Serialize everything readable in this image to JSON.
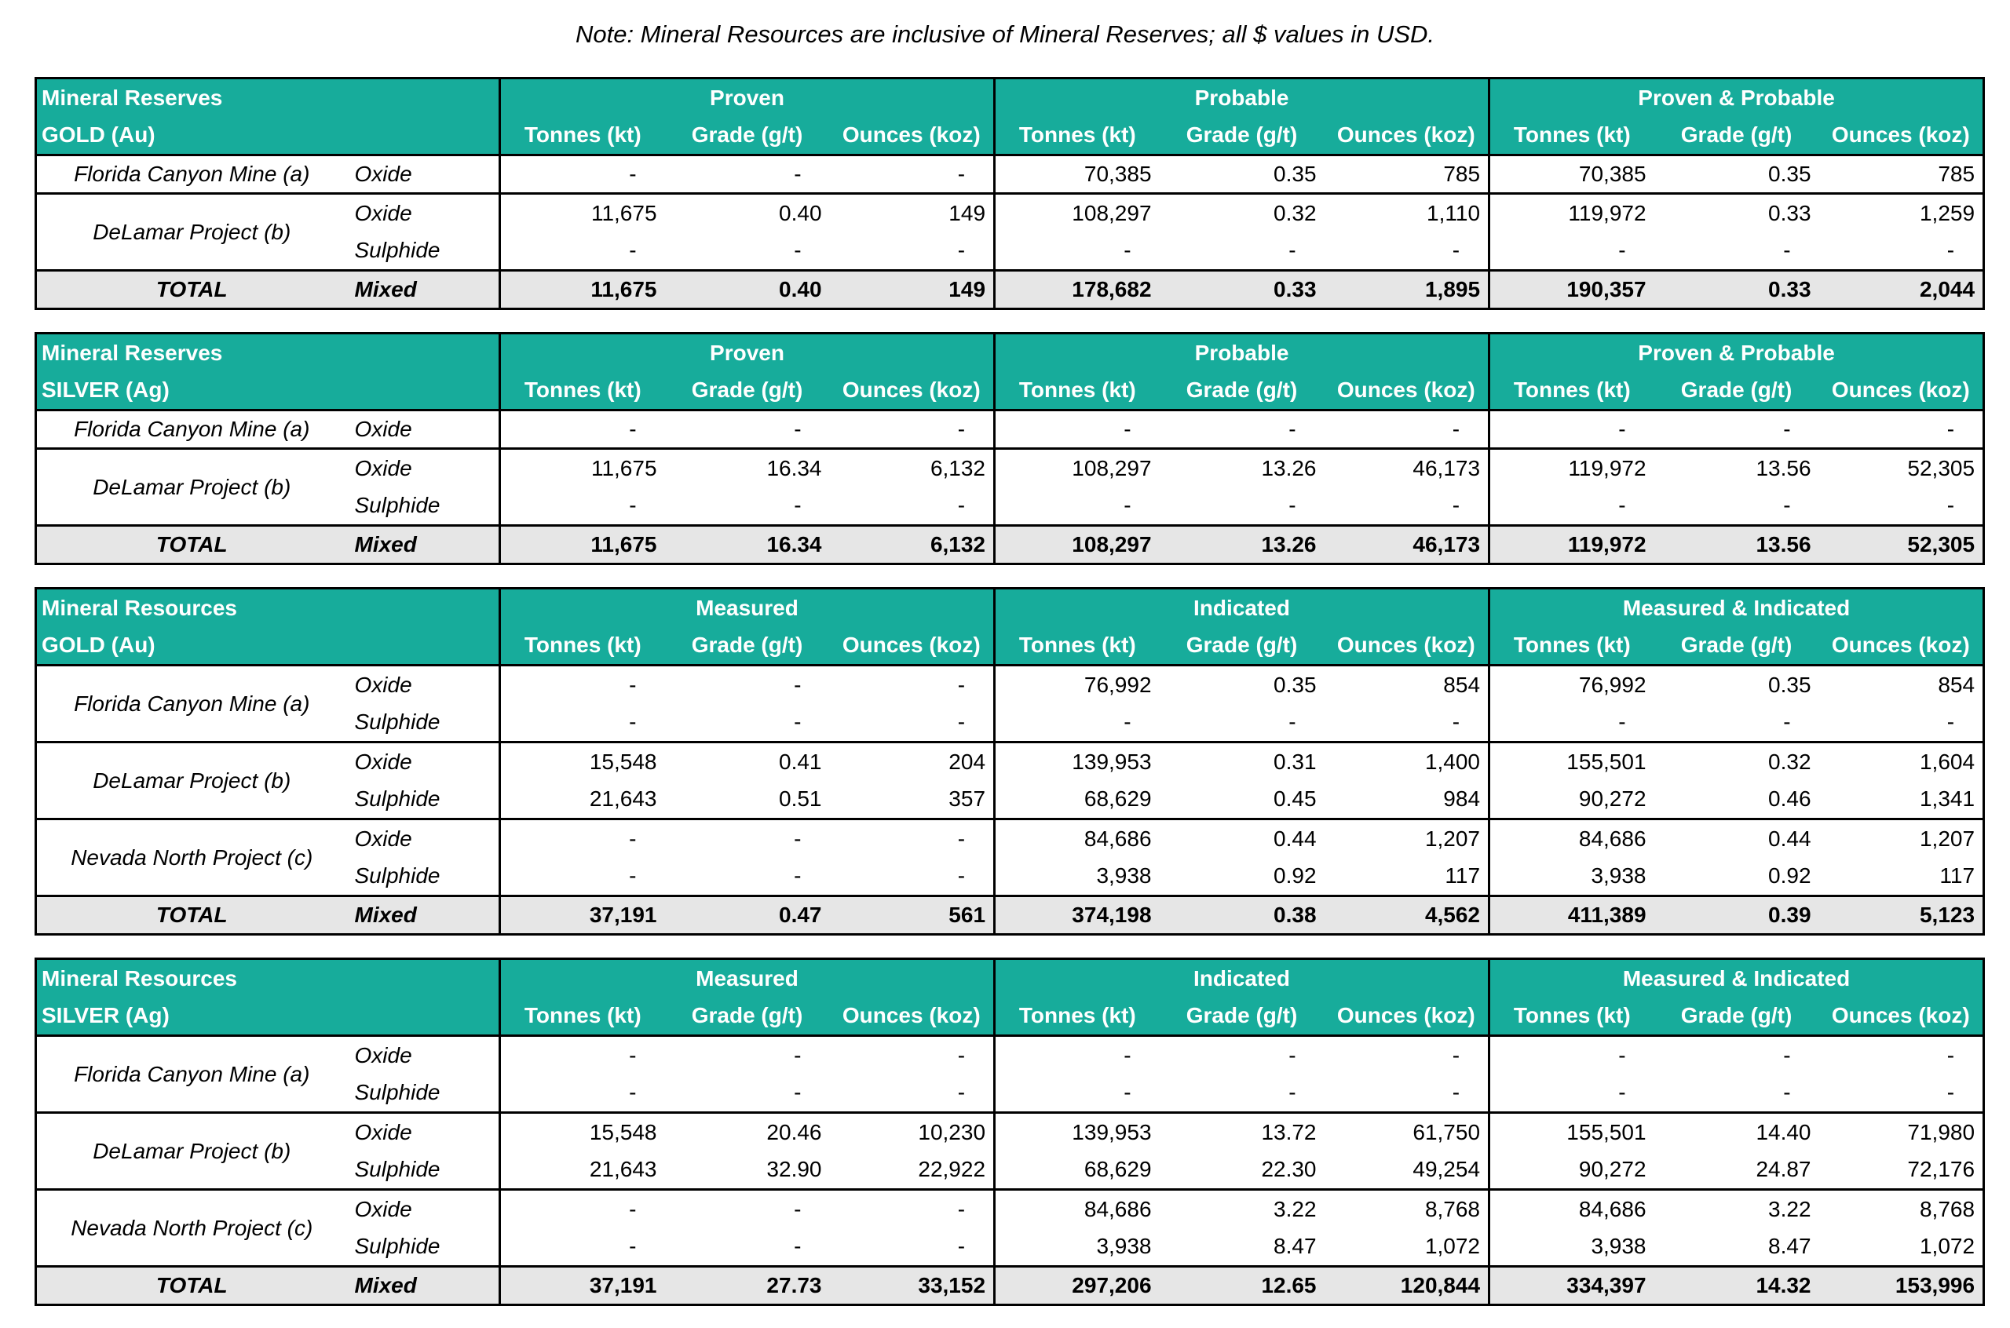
{
  "note": "Note: Mineral Resources are inclusive of Mineral Reserves; all $ values in USD.",
  "tables": [
    {
      "title": "Mineral Reserves",
      "metal": "GOLD (Au)",
      "groups": [
        "Proven",
        "Probable",
        "Proven & Probable"
      ],
      "columns": [
        "Tonnes (kt)",
        "Grade (g/t)",
        "Ounces (koz)",
        "Tonnes (kt)",
        "Grade (g/t)",
        "Ounces (koz)",
        "Tonnes (kt)",
        "Grade (g/t)",
        "Ounces (koz)"
      ],
      "projects": [
        {
          "name": "Florida Canyon Mine (a)",
          "rows": [
            {
              "type": "Oxide",
              "values": [
                "-",
                "-",
                "-",
                "70,385",
                "0.35",
                "785",
                "70,385",
                "0.35",
                "785"
              ]
            }
          ]
        },
        {
          "name": "DeLamar Project (b)",
          "rows": [
            {
              "type": "Oxide",
              "values": [
                "11,675",
                "0.40",
                "149",
                "108,297",
                "0.32",
                "1,110",
                "119,972",
                "0.33",
                "1,259"
              ]
            },
            {
              "type": "Sulphide",
              "values": [
                "-",
                "-",
                "-",
                "-",
                "-",
                "-",
                "-",
                "-",
                "-"
              ]
            }
          ]
        }
      ],
      "total": {
        "label": "TOTAL",
        "type": "Mixed",
        "values": [
          "11,675",
          "0.40",
          "149",
          "178,682",
          "0.33",
          "1,895",
          "190,357",
          "0.33",
          "2,044"
        ]
      }
    },
    {
      "title": "Mineral Reserves",
      "metal": "SILVER (Ag)",
      "groups": [
        "Proven",
        "Probable",
        "Proven & Probable"
      ],
      "columns": [
        "Tonnes (kt)",
        "Grade (g/t)",
        "Ounces (koz)",
        "Tonnes (kt)",
        "Grade (g/t)",
        "Ounces (koz)",
        "Tonnes (kt)",
        "Grade (g/t)",
        "Ounces (koz)"
      ],
      "projects": [
        {
          "name": "Florida Canyon Mine (a)",
          "rows": [
            {
              "type": "Oxide",
              "values": [
                "-",
                "-",
                "-",
                "-",
                "-",
                "-",
                "-",
                "-",
                "-"
              ]
            }
          ]
        },
        {
          "name": "DeLamar Project (b)",
          "rows": [
            {
              "type": "Oxide",
              "values": [
                "11,675",
                "16.34",
                "6,132",
                "108,297",
                "13.26",
                "46,173",
                "119,972",
                "13.56",
                "52,305"
              ]
            },
            {
              "type": "Sulphide",
              "values": [
                "-",
                "-",
                "-",
                "-",
                "-",
                "-",
                "-",
                "-",
                "-"
              ]
            }
          ]
        }
      ],
      "total": {
        "label": "TOTAL",
        "type": "Mixed",
        "values": [
          "11,675",
          "16.34",
          "6,132",
          "108,297",
          "13.26",
          "46,173",
          "119,972",
          "13.56",
          "52,305"
        ]
      }
    },
    {
      "title": "Mineral Resources",
      "metal": "GOLD (Au)",
      "groups": [
        "Measured",
        "Indicated",
        "Measured & Indicated"
      ],
      "columns": [
        "Tonnes (kt)",
        "Grade (g/t)",
        "Ounces (koz)",
        "Tonnes (kt)",
        "Grade (g/t)",
        "Ounces (koz)",
        "Tonnes (kt)",
        "Grade (g/t)",
        "Ounces (koz)"
      ],
      "projects": [
        {
          "name": "Florida Canyon Mine (a)",
          "rows": [
            {
              "type": "Oxide",
              "values": [
                "-",
                "-",
                "-",
                "76,992",
                "0.35",
                "854",
                "76,992",
                "0.35",
                "854"
              ]
            },
            {
              "type": "Sulphide",
              "values": [
                "-",
                "-",
                "-",
                "-",
                "-",
                "-",
                "-",
                "-",
                "-"
              ]
            }
          ]
        },
        {
          "name": "DeLamar Project (b)",
          "rows": [
            {
              "type": "Oxide",
              "values": [
                "15,548",
                "0.41",
                "204",
                "139,953",
                "0.31",
                "1,400",
                "155,501",
                "0.32",
                "1,604"
              ]
            },
            {
              "type": "Sulphide",
              "values": [
                "21,643",
                "0.51",
                "357",
                "68,629",
                "0.45",
                "984",
                "90,272",
                "0.46",
                "1,341"
              ]
            }
          ]
        },
        {
          "name": "Nevada North Project (c)",
          "rows": [
            {
              "type": "Oxide",
              "values": [
                "-",
                "-",
                "-",
                "84,686",
                "0.44",
                "1,207",
                "84,686",
                "0.44",
                "1,207"
              ]
            },
            {
              "type": "Sulphide",
              "values": [
                "-",
                "-",
                "-",
                "3,938",
                "0.92",
                "117",
                "3,938",
                "0.92",
                "117"
              ]
            }
          ]
        }
      ],
      "total": {
        "label": "TOTAL",
        "type": "Mixed",
        "values": [
          "37,191",
          "0.47",
          "561",
          "374,198",
          "0.38",
          "4,562",
          "411,389",
          "0.39",
          "5,123"
        ]
      }
    },
    {
      "title": "Mineral Resources",
      "metal": "SILVER (Ag)",
      "groups": [
        "Measured",
        "Indicated",
        "Measured & Indicated"
      ],
      "columns": [
        "Tonnes (kt)",
        "Grade (g/t)",
        "Ounces (koz)",
        "Tonnes (kt)",
        "Grade (g/t)",
        "Ounces (koz)",
        "Tonnes (kt)",
        "Grade (g/t)",
        "Ounces (koz)"
      ],
      "projects": [
        {
          "name": "Florida Canyon Mine (a)",
          "rows": [
            {
              "type": "Oxide",
              "values": [
                "-",
                "-",
                "-",
                "-",
                "-",
                "-",
                "-",
                "-",
                "-"
              ]
            },
            {
              "type": "Sulphide",
              "values": [
                "-",
                "-",
                "-",
                "-",
                "-",
                "-",
                "-",
                "-",
                "-"
              ]
            }
          ]
        },
        {
          "name": "DeLamar Project (b)",
          "rows": [
            {
              "type": "Oxide",
              "values": [
                "15,548",
                "20.46",
                "10,230",
                "139,953",
                "13.72",
                "61,750",
                "155,501",
                "14.40",
                "71,980"
              ]
            },
            {
              "type": "Sulphide",
              "values": [
                "21,643",
                "32.90",
                "22,922",
                "68,629",
                "22.30",
                "49,254",
                "90,272",
                "24.87",
                "72,176"
              ]
            }
          ]
        },
        {
          "name": "Nevada North Project (c)",
          "rows": [
            {
              "type": "Oxide",
              "values": [
                "-",
                "-",
                "-",
                "84,686",
                "3.22",
                "8,768",
                "84,686",
                "3.22",
                "8,768"
              ]
            },
            {
              "type": "Sulphide",
              "values": [
                "-",
                "-",
                "-",
                "3,938",
                "8.47",
                "1,072",
                "3,938",
                "8.47",
                "1,072"
              ]
            }
          ]
        }
      ],
      "total": {
        "label": "TOTAL",
        "type": "Mixed",
        "values": [
          "37,191",
          "27.73",
          "33,152",
          "297,206",
          "12.65",
          "120,844",
          "334,397",
          "14.32",
          "153,996"
        ]
      }
    }
  ]
}
